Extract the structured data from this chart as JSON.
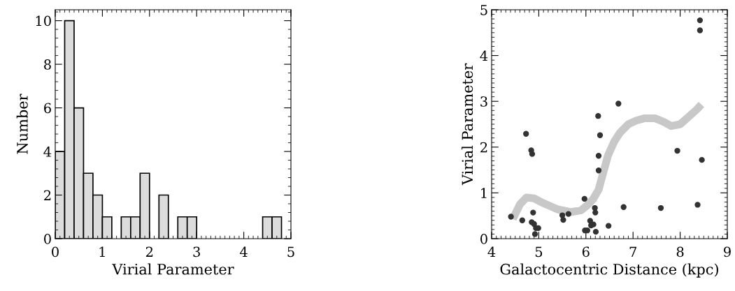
{
  "chart_data": [
    {
      "type": "histogram",
      "xlabel": "Virial Parameter",
      "ylabel": "Number",
      "color": "#dcdcdc",
      "bins": [
        0,
        0.2,
        0.4,
        0.6,
        0.8,
        1.0,
        1.2,
        1.4,
        1.6,
        1.8,
        2.0,
        2.2,
        2.4,
        2.6,
        2.8,
        3.0,
        3.2,
        3.4,
        3.6,
        3.8,
        4.0,
        4.2,
        4.4,
        4.6,
        4.8
      ],
      "values": [
        4,
        10,
        6,
        3,
        2,
        1,
        0,
        1,
        1,
        3,
        0,
        2,
        0,
        1,
        1,
        0,
        0,
        0,
        0,
        0,
        0,
        0,
        1,
        1
      ],
      "xlim": [
        0,
        5
      ],
      "xticks": [
        0,
        1,
        2,
        3,
        4,
        5
      ],
      "ylim": [
        0,
        10.5
      ],
      "yticks": [
        0,
        2,
        4,
        6,
        8,
        10
      ],
      "grid": false
    },
    {
      "type": "scatter",
      "xlabel": "Galactocentric Distance (kpc)",
      "ylabel": "Virial Parameter",
      "series": [
        {
          "type": "scatter",
          "marker": "circle",
          "color": "#333333",
          "x": [
            4.41,
            4.65,
            4.73,
            4.84,
            4.86,
            4.88,
            4.85,
            4.9,
            4.94,
            4.99,
            4.92,
            5.5,
            5.52,
            5.63,
            5.97,
            5.98,
            6.03,
            6.09,
            6.11,
            6.16,
            6.19,
            6.2,
            6.21,
            6.27,
            6.27,
            6.3,
            6.48,
            6.8,
            7.59,
            7.94,
            8.37,
            8.46,
            6.26,
            6.69,
            8.42,
            8.42
          ],
          "values": [
            0.48,
            0.4,
            2.29,
            1.93,
            1.85,
            0.57,
            0.36,
            0.32,
            0.23,
            0.23,
            0.1,
            0.51,
            0.41,
            0.54,
            0.87,
            0.18,
            0.18,
            0.39,
            0.29,
            0.31,
            0.67,
            0.57,
            0.15,
            1.49,
            1.81,
            2.26,
            0.28,
            0.69,
            0.67,
            1.92,
            0.74,
            1.72,
            2.68,
            2.95,
            4.77,
            4.55
          ]
        },
        {
          "type": "line",
          "color": "#c8c8c8",
          "x": [
            4.45,
            4.6,
            4.74,
            4.9,
            5.09,
            5.4,
            5.68,
            5.9,
            6.03,
            6.15,
            6.27,
            6.37,
            6.47,
            6.6,
            6.72,
            6.9,
            7.07,
            7.25,
            7.46,
            7.65,
            7.81,
            8.0,
            8.2,
            8.35,
            8.45
          ],
          "values": [
            0.43,
            0.75,
            0.9,
            0.88,
            0.78,
            0.64,
            0.58,
            0.62,
            0.73,
            0.86,
            1.07,
            1.45,
            1.82,
            2.12,
            2.31,
            2.5,
            2.58,
            2.63,
            2.63,
            2.55,
            2.46,
            2.5,
            2.68,
            2.82,
            2.93
          ]
        }
      ],
      "xlim": [
        4,
        9
      ],
      "xticks": [
        4,
        5,
        6,
        7,
        8,
        9
      ],
      "ylim": [
        0,
        5
      ],
      "yticks": [
        0,
        1,
        2,
        3,
        4,
        5
      ],
      "grid": false
    }
  ]
}
